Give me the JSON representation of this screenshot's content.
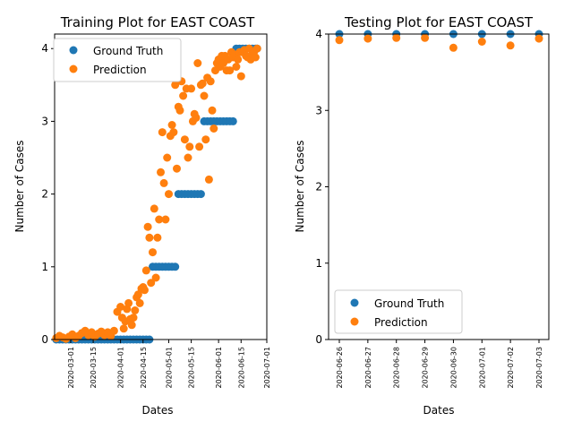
{
  "colors": {
    "ground_truth": "#1f77b4",
    "prediction": "#ff7f0e",
    "axis": "#000000",
    "legend_border": "#cccccc"
  },
  "chart_data": [
    {
      "type": "scatter",
      "title": "Training Plot for EAST COAST",
      "xlabel": "Dates",
      "ylabel": "Number of Cases",
      "x_tick_labels": [
        "2020-03-01",
        "2020-03-15",
        "2020-04-01",
        "2020-04-15",
        "2020-05-01",
        "2020-05-15",
        "2020-06-01",
        "2020-06-15",
        "2020-07-01"
      ],
      "y_tick_labels": [
        "0",
        "1",
        "2",
        "3",
        "4"
      ],
      "ylim": [
        0,
        4.2
      ],
      "xlim": [
        "2020-02-20",
        "2020-07-01"
      ],
      "grid": false,
      "legend_position": "upper left",
      "series": [
        {
          "name": "Ground Truth",
          "color": "#1f77b4",
          "points": [
            [
              "2020-02-21",
              0
            ],
            [
              "2020-02-23",
              0
            ],
            [
              "2020-02-25",
              0
            ],
            [
              "2020-02-27",
              0
            ],
            [
              "2020-02-29",
              0
            ],
            [
              "2020-03-02",
              0
            ],
            [
              "2020-03-04",
              0
            ],
            [
              "2020-03-06",
              0
            ],
            [
              "2020-03-08",
              0
            ],
            [
              "2020-03-10",
              0
            ],
            [
              "2020-03-12",
              0
            ],
            [
              "2020-03-14",
              0
            ],
            [
              "2020-03-16",
              0
            ],
            [
              "2020-03-18",
              0
            ],
            [
              "2020-03-20",
              0
            ],
            [
              "2020-03-22",
              0
            ],
            [
              "2020-03-24",
              0
            ],
            [
              "2020-03-26",
              0
            ],
            [
              "2020-03-28",
              0
            ],
            [
              "2020-03-30",
              0
            ],
            [
              "2020-04-01",
              0
            ],
            [
              "2020-04-03",
              0
            ],
            [
              "2020-04-05",
              0
            ],
            [
              "2020-04-07",
              0
            ],
            [
              "2020-04-09",
              0
            ],
            [
              "2020-04-11",
              0
            ],
            [
              "2020-04-13",
              0
            ],
            [
              "2020-04-15",
              0
            ],
            [
              "2020-04-17",
              0
            ],
            [
              "2020-04-19",
              0
            ],
            [
              "2020-04-21",
              1
            ],
            [
              "2020-04-23",
              1
            ],
            [
              "2020-04-25",
              1
            ],
            [
              "2020-04-27",
              1
            ],
            [
              "2020-04-29",
              1
            ],
            [
              "2020-05-01",
              1
            ],
            [
              "2020-05-03",
              1
            ],
            [
              "2020-05-05",
              1
            ],
            [
              "2020-05-07",
              2
            ],
            [
              "2020-05-09",
              2
            ],
            [
              "2020-05-11",
              2
            ],
            [
              "2020-05-13",
              2
            ],
            [
              "2020-05-15",
              2
            ],
            [
              "2020-05-17",
              2
            ],
            [
              "2020-05-19",
              2
            ],
            [
              "2020-05-21",
              2
            ],
            [
              "2020-05-23",
              3
            ],
            [
              "2020-05-25",
              3
            ],
            [
              "2020-05-27",
              3
            ],
            [
              "2020-05-29",
              3
            ],
            [
              "2020-05-31",
              3
            ],
            [
              "2020-06-02",
              3
            ],
            [
              "2020-06-04",
              3
            ],
            [
              "2020-06-06",
              3
            ],
            [
              "2020-06-08",
              3
            ],
            [
              "2020-06-10",
              3
            ],
            [
              "2020-06-12",
              4
            ],
            [
              "2020-06-14",
              4
            ],
            [
              "2020-06-16",
              4
            ],
            [
              "2020-06-18",
              4
            ],
            [
              "2020-06-20",
              4
            ],
            [
              "2020-06-22",
              4
            ],
            [
              "2020-06-24",
              4
            ],
            [
              "2020-06-25",
              4
            ]
          ]
        },
        {
          "name": "Prediction",
          "color": "#ff7f0e",
          "points": [
            [
              "2020-02-21",
              0.02
            ],
            [
              "2020-02-23",
              0.05
            ],
            [
              "2020-02-25",
              0.03
            ],
            [
              "2020-02-27",
              0.01
            ],
            [
              "2020-02-29",
              0.04
            ],
            [
              "2020-03-02",
              0.07
            ],
            [
              "2020-03-04",
              0.02
            ],
            [
              "2020-03-06",
              0.05
            ],
            [
              "2020-03-08",
              0.09
            ],
            [
              "2020-03-10",
              0.12
            ],
            [
              "2020-03-12",
              0.06
            ],
            [
              "2020-03-14",
              0.1
            ],
            [
              "2020-03-16",
              0.04
            ],
            [
              "2020-03-18",
              0.08
            ],
            [
              "2020-03-20",
              0.11
            ],
            [
              "2020-03-22",
              0.06
            ],
            [
              "2020-03-24",
              0.1
            ],
            [
              "2020-03-26",
              0.05
            ],
            [
              "2020-03-28",
              0.12
            ],
            [
              "2020-03-30",
              0.38
            ],
            [
              "2020-04-01",
              0.45
            ],
            [
              "2020-04-02",
              0.3
            ],
            [
              "2020-04-03",
              0.15
            ],
            [
              "2020-04-04",
              0.25
            ],
            [
              "2020-04-05",
              0.42
            ],
            [
              "2020-04-06",
              0.5
            ],
            [
              "2020-04-07",
              0.28
            ],
            [
              "2020-04-08",
              0.2
            ],
            [
              "2020-04-09",
              0.3
            ],
            [
              "2020-04-10",
              0.4
            ],
            [
              "2020-04-11",
              0.58
            ],
            [
              "2020-04-12",
              0.62
            ],
            [
              "2020-04-13",
              0.5
            ],
            [
              "2020-04-14",
              0.7
            ],
            [
              "2020-04-15",
              0.72
            ],
            [
              "2020-04-16",
              0.68
            ],
            [
              "2020-04-17",
              0.95
            ],
            [
              "2020-04-18",
              1.55
            ],
            [
              "2020-04-19",
              1.4
            ],
            [
              "2020-04-20",
              0.78
            ],
            [
              "2020-04-21",
              1.2
            ],
            [
              "2020-04-22",
              1.8
            ],
            [
              "2020-04-23",
              0.85
            ],
            [
              "2020-04-24",
              1.4
            ],
            [
              "2020-04-25",
              1.65
            ],
            [
              "2020-04-26",
              2.3
            ],
            [
              "2020-04-27",
              2.85
            ],
            [
              "2020-04-28",
              2.15
            ],
            [
              "2020-04-29",
              1.65
            ],
            [
              "2020-04-30",
              2.5
            ],
            [
              "2020-05-01",
              2.0
            ],
            [
              "2020-05-02",
              2.8
            ],
            [
              "2020-05-03",
              2.95
            ],
            [
              "2020-05-04",
              2.85
            ],
            [
              "2020-05-05",
              3.5
            ],
            [
              "2020-05-06",
              2.35
            ],
            [
              "2020-05-07",
              3.2
            ],
            [
              "2020-05-08",
              3.15
            ],
            [
              "2020-05-09",
              3.55
            ],
            [
              "2020-05-10",
              3.35
            ],
            [
              "2020-05-11",
              2.75
            ],
            [
              "2020-05-12",
              3.45
            ],
            [
              "2020-05-13",
              2.5
            ],
            [
              "2020-05-14",
              2.65
            ],
            [
              "2020-05-15",
              3.45
            ],
            [
              "2020-05-16",
              3.0
            ],
            [
              "2020-05-17",
              3.1
            ],
            [
              "2020-05-18",
              3.05
            ],
            [
              "2020-05-19",
              3.8
            ],
            [
              "2020-05-20",
              2.65
            ],
            [
              "2020-05-21",
              3.5
            ],
            [
              "2020-05-22",
              3.52
            ],
            [
              "2020-05-23",
              3.35
            ],
            [
              "2020-05-24",
              2.75
            ],
            [
              "2020-05-25",
              3.6
            ],
            [
              "2020-05-26",
              2.2
            ],
            [
              "2020-05-27",
              3.55
            ],
            [
              "2020-05-28",
              3.15
            ],
            [
              "2020-05-29",
              2.9
            ],
            [
              "2020-05-30",
              3.7
            ],
            [
              "2020-05-31",
              3.8
            ],
            [
              "2020-06-01",
              3.85
            ],
            [
              "2020-06-02",
              3.75
            ],
            [
              "2020-06-03",
              3.9
            ],
            [
              "2020-06-04",
              3.8
            ],
            [
              "2020-06-05",
              3.9
            ],
            [
              "2020-06-06",
              3.7
            ],
            [
              "2020-06-07",
              3.85
            ],
            [
              "2020-06-08",
              3.7
            ],
            [
              "2020-06-09",
              3.95
            ],
            [
              "2020-06-10",
              3.88
            ],
            [
              "2020-06-11",
              3.92
            ],
            [
              "2020-06-12",
              3.75
            ],
            [
              "2020-06-13",
              3.85
            ],
            [
              "2020-06-14",
              3.95
            ],
            [
              "2020-06-15",
              3.62
            ],
            [
              "2020-06-16",
              3.95
            ],
            [
              "2020-06-17",
              3.98
            ],
            [
              "2020-06-18",
              3.9
            ],
            [
              "2020-06-19",
              3.88
            ],
            [
              "2020-06-20",
              4.0
            ],
            [
              "2020-06-21",
              3.85
            ],
            [
              "2020-06-22",
              3.92
            ],
            [
              "2020-06-23",
              3.95
            ],
            [
              "2020-06-24",
              3.88
            ],
            [
              "2020-06-25",
              4.0
            ]
          ]
        }
      ]
    },
    {
      "type": "scatter",
      "title": "Testing Plot for EAST COAST",
      "xlabel": "Dates",
      "ylabel": "Number of Cases",
      "x_tick_labels": [
        "2020-06-26",
        "2020-06-27",
        "2020-06-28",
        "2020-06-29",
        "2020-06-30",
        "2020-07-01",
        "2020-07-02",
        "2020-07-03"
      ],
      "y_tick_labels": [
        "0",
        "1",
        "2",
        "3",
        "4"
      ],
      "ylim": [
        0,
        4
      ],
      "xlim": [
        "2020-06-26",
        "2020-07-03"
      ],
      "grid": false,
      "legend_position": "lower left",
      "series": [
        {
          "name": "Ground Truth",
          "color": "#1f77b4",
          "points": [
            [
              "2020-06-26",
              4
            ],
            [
              "2020-06-27",
              4
            ],
            [
              "2020-06-28",
              4
            ],
            [
              "2020-06-29",
              4
            ],
            [
              "2020-06-30",
              4
            ],
            [
              "2020-07-01",
              4
            ],
            [
              "2020-07-02",
              4
            ],
            [
              "2020-07-03",
              4
            ]
          ]
        },
        {
          "name": "Prediction",
          "color": "#ff7f0e",
          "points": [
            [
              "2020-06-26",
              3.92
            ],
            [
              "2020-06-27",
              3.94
            ],
            [
              "2020-06-28",
              3.95
            ],
            [
              "2020-06-29",
              3.95
            ],
            [
              "2020-06-30",
              3.82
            ],
            [
              "2020-07-01",
              3.9
            ],
            [
              "2020-07-02",
              3.85
            ],
            [
              "2020-07-03",
              3.94
            ]
          ]
        }
      ]
    }
  ]
}
